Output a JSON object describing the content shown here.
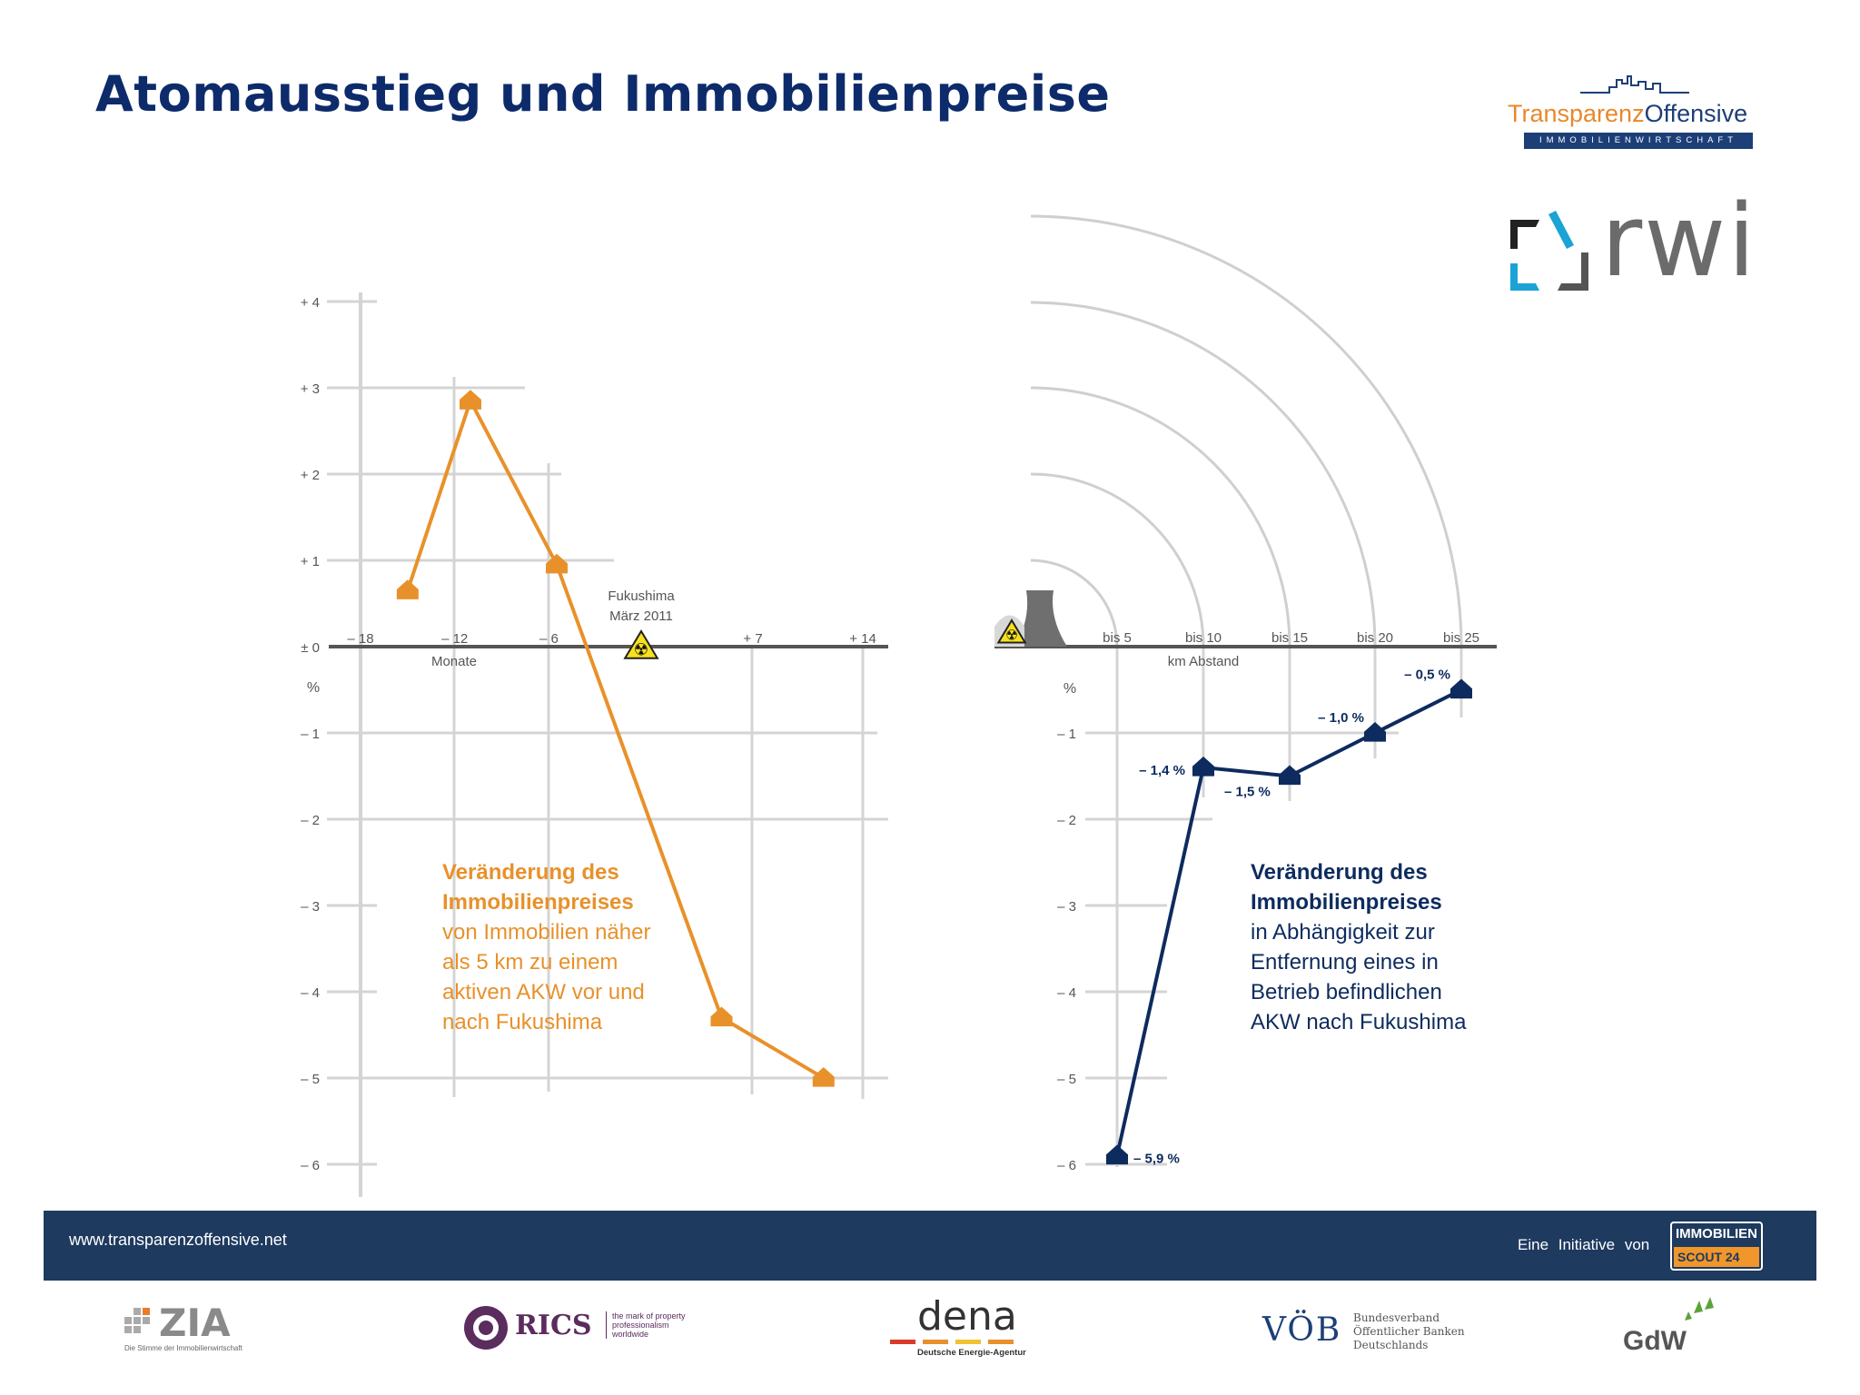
{
  "title": "Atomausstieg und Immobilienpreise",
  "logo_tp": {
    "brand_a": "Transparenz",
    "brand_b": "Offensive",
    "sub": "IMMOBILIENWIRTSCHAFT"
  },
  "logo_rwi": "rwi",
  "colors": {
    "orange": "#e8912b",
    "navy": "#0d2b5e",
    "grid": "#d4d4d4",
    "footer": "#1e3a5f"
  },
  "chart_data": [
    {
      "type": "line",
      "x_unit_label": "Monate",
      "y_unit_label": "%",
      "ylim": [
        -6,
        4
      ],
      "xlim": [
        -18,
        14
      ],
      "x_ticks": [
        -18,
        -12,
        -6,
        7,
        14
      ],
      "x_tick_labels": [
        "– 18",
        "– 12",
        "– 6",
        "+ 7",
        "+ 14"
      ],
      "y_ticks": [
        4,
        3,
        2,
        1,
        0,
        -1,
        -2,
        -3,
        -4,
        -5,
        -6
      ],
      "y_tick_labels": [
        "+ 4",
        "+ 3",
        "+ 2",
        "+ 1",
        "± 0",
        "– 1",
        "– 2",
        "– 3",
        "– 4",
        "– 5",
        "– 6"
      ],
      "annotation": {
        "line1": "Fukushima",
        "line2": "März 2011",
        "x": 0
      },
      "series": [
        {
          "x": [
            -15,
            -11,
            -5.5,
            5,
            11.5
          ],
          "values": [
            0.65,
            2.85,
            0.95,
            -4.3,
            -5.0
          ]
        }
      ],
      "text_lines": [
        "Veränderung des",
        "Immobilienpreises",
        "von Immobilien näher",
        "als 5 km zu einem",
        "aktiven AKW vor und",
        "nach Fukushima"
      ],
      "text_bold_lines": 2
    },
    {
      "type": "line",
      "x_unit_label": "km Abstand",
      "y_unit_label": "%",
      "ylim": [
        -6,
        0
      ],
      "categories": [
        "bis 5",
        "bis 10",
        "bis 15",
        "bis 20",
        "bis 25"
      ],
      "y_ticks": [
        -1,
        -2,
        -3,
        -4,
        -5,
        -6
      ],
      "y_tick_labels": [
        "– 1",
        "– 2",
        "– 3",
        "– 4",
        "– 5",
        "– 6"
      ],
      "series": [
        {
          "values": [
            -5.9,
            -1.4,
            -1.5,
            -1.0,
            -0.5
          ]
        }
      ],
      "data_labels": [
        "– 5,9 %",
        "– 1,4 %",
        "– 1,5 %",
        "– 1,0 %",
        "– 0,5 %"
      ],
      "text_lines": [
        "Veränderung des",
        "Immobilienpreises",
        "in Abhängigkeit zur",
        "Entfernung eines in",
        "Betrieb befindlichen",
        "AKW nach Fukushima"
      ],
      "text_bold_lines": 2
    }
  ],
  "footer": {
    "url": "www.transparenzoffensive.net",
    "initiative": "Eine Initiative von",
    "is24_top": "IMMOBILIEN",
    "is24_bottom": "SCOUT 24"
  },
  "partners": {
    "zia": "ZIA",
    "zia_sub": "Die Stimme der Immobilienwirtschaft",
    "rics": "RICS",
    "rics_sub": "the mark of property professionalism worldwide",
    "dena": "dena",
    "dena_sub": "Deutsche Energie-Agentur",
    "voeb": "VÖB",
    "voeb_sub1": "Bundesverband",
    "voeb_sub2": "Öffentlicher Banken",
    "voeb_sub3": "Deutschlands",
    "gdw": "GdW"
  }
}
